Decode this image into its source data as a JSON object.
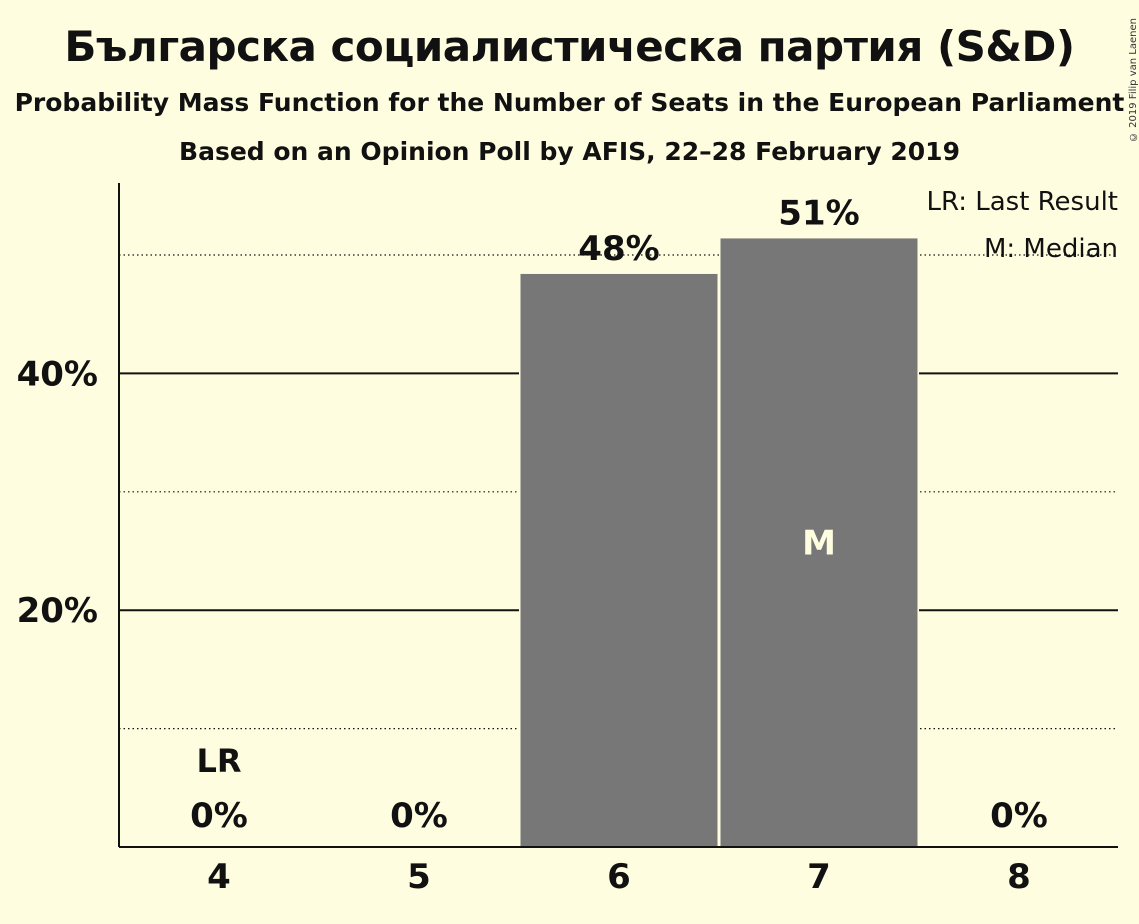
{
  "header": {
    "title": "Българска социалистическа партия (S&D)",
    "subtitle_1": "Probability Mass Function for the Number of Seats in the European Parliament",
    "subtitle_2": "Based on an Opinion Poll by AFIS, 22–28 February 2019",
    "copyright": "© 2019 Filip van Laenen"
  },
  "legend": {
    "lr": "LR: Last Result",
    "median": "M: Median"
  },
  "chart_data": {
    "type": "bar",
    "categories": [
      "4",
      "5",
      "6",
      "7",
      "8"
    ],
    "values": [
      0,
      0,
      48.4,
      51.4,
      0
    ],
    "data_labels": [
      "0%",
      "0%",
      "48%",
      "51%",
      "0%"
    ],
    "ylim": [
      0,
      56
    ],
    "y_major_ticks": [
      20,
      40
    ],
    "y_major_tick_labels": [
      "20%",
      "40%"
    ],
    "y_minor_gridlines": [
      10,
      30,
      50
    ],
    "last_result_category": "4",
    "last_result_label": "LR",
    "median_category": "7",
    "median_label": "M",
    "bar_color": "#777777",
    "background_color": "#fffde0"
  }
}
